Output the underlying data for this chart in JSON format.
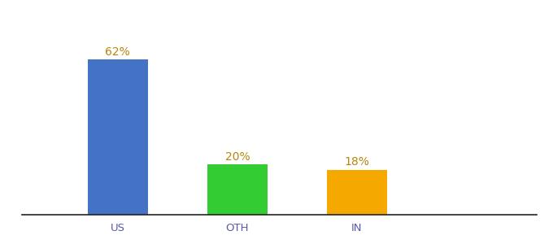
{
  "categories": [
    "US",
    "OTH",
    "IN"
  ],
  "values": [
    62,
    20,
    18
  ],
  "bar_colors": [
    "#4472c4",
    "#33cc33",
    "#f5a800"
  ],
  "label_texts": [
    "62%",
    "20%",
    "18%"
  ],
  "label_color": "#b8860b",
  "ylim": [
    0,
    78
  ],
  "background_color": "#ffffff",
  "bar_width": 0.5,
  "tick_fontsize": 9.5,
  "label_fontsize": 10,
  "spine_color": "#222222",
  "x_positions": [
    1,
    2,
    3
  ],
  "xlim": [
    0.2,
    4.5
  ]
}
